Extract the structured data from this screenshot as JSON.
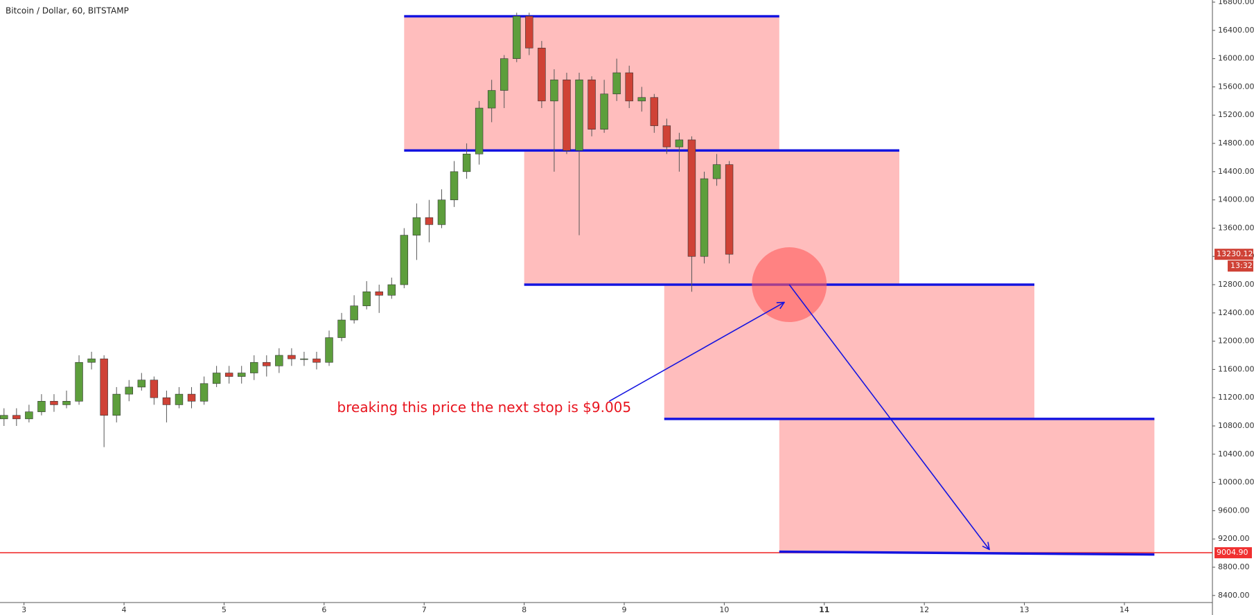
{
  "chart_data": {
    "type": "candlestick",
    "title": "Bitcoin / Dollar, 60, BITSTAMP",
    "x": [
      2.8,
      2.925,
      3.05,
      3.175,
      3.3,
      3.425,
      3.55,
      3.675,
      3.8,
      3.925,
      4.05,
      4.175,
      4.3,
      4.425,
      4.55,
      4.675,
      4.8,
      4.925,
      5.05,
      5.175,
      5.3,
      5.425,
      5.55,
      5.675,
      5.8,
      5.925,
      6.05,
      6.175,
      6.3,
      6.425,
      6.55,
      6.675,
      6.8,
      6.925,
      7.05,
      7.175,
      7.3,
      7.425,
      7.55,
      7.675,
      7.8,
      7.925,
      8.05,
      8.175,
      8.3,
      8.425,
      8.55,
      8.675,
      8.8,
      8.925,
      9.05,
      9.175,
      9.3,
      9.425,
      9.55,
      9.675,
      9.8,
      9.925,
      10.05
    ],
    "open": [
      10900,
      10950,
      10900,
      11000,
      11150,
      11100,
      11150,
      11700,
      11750,
      10950,
      11250,
      11350,
      11450,
      11200,
      11100,
      11250,
      11150,
      11400,
      11550,
      11500,
      11550,
      11700,
      11650,
      11800,
      11750,
      11750,
      11700,
      12050,
      12300,
      12500,
      12700,
      12650,
      12800,
      13500,
      13750,
      13650,
      14000,
      14400,
      14650,
      15300,
      15550,
      16000,
      16600,
      16150,
      15400,
      15700,
      14700,
      15700,
      15000,
      15500,
      15800,
      15400,
      15450,
      15050,
      14750,
      14850,
      13200,
      14300,
      14500
    ],
    "high": [
      11050,
      11050,
      11100,
      11250,
      11250,
      11300,
      11800,
      11850,
      11800,
      11350,
      11450,
      11550,
      11500,
      11300,
      11350,
      11350,
      11500,
      11650,
      11650,
      11650,
      11800,
      11800,
      11900,
      11900,
      11850,
      11850,
      12150,
      12400,
      12650,
      12850,
      12800,
      12900,
      13600,
      13950,
      14000,
      14150,
      14550,
      14800,
      15400,
      15700,
      16050,
      16650,
      16650,
      16250,
      15850,
      15800,
      15800,
      15750,
      15700,
      16000,
      15900,
      15600,
      15500,
      15150,
      14950,
      14900,
      14400,
      14650,
      14550
    ],
    "low": [
      10800,
      10800,
      10850,
      10950,
      11000,
      11050,
      11100,
      11600,
      10500,
      10850,
      11150,
      11300,
      11100,
      10850,
      11050,
      11050,
      11100,
      11350,
      11400,
      11400,
      11450,
      11500,
      11550,
      11650,
      11650,
      11600,
      11650,
      12000,
      12250,
      12450,
      12400,
      12600,
      12750,
      13150,
      13400,
      13600,
      13900,
      14300,
      14500,
      15100,
      15300,
      15950,
      16050,
      15300,
      14400,
      14650,
      13500,
      14900,
      14950,
      15400,
      15300,
      15250,
      14950,
      14650,
      14400,
      12700,
      13100,
      14200,
      13100
    ],
    "close": [
      10950,
      10900,
      11000,
      11150,
      11100,
      11150,
      11700,
      11750,
      10950,
      11250,
      11350,
      11450,
      11200,
      11100,
      11250,
      11150,
      11400,
      11550,
      11500,
      11550,
      11700,
      11650,
      11800,
      11750,
      11750,
      11700,
      12050,
      12300,
      12500,
      12700,
      12650,
      12800,
      13500,
      13750,
      13650,
      14000,
      14400,
      14650,
      15300,
      15550,
      16000,
      16600,
      16150,
      15400,
      15700,
      14700,
      15700,
      15000,
      15500,
      15800,
      15400,
      15450,
      15050,
      14750,
      14850,
      13200,
      14300,
      14500,
      13230.12
    ],
    "up_color": "#5d9e3c",
    "down_color": "#cf4236",
    "xlim": [
      2.76,
      14.88
    ],
    "xticks": [
      3,
      4,
      5,
      6,
      7,
      8,
      9,
      10,
      11,
      12,
      13,
      14
    ],
    "bold_xtick": 11,
    "ylim": [
      8300,
      16830
    ],
    "yticks": [
      {
        "value": 16800,
        "label": "16800.00"
      },
      {
        "value": 16400,
        "label": "16400.00"
      },
      {
        "value": 16000,
        "label": "16000.00"
      },
      {
        "value": 15600,
        "label": "15600.00"
      },
      {
        "value": 15200,
        "label": "15200.00"
      },
      {
        "value": 14800,
        "label": "14800.00"
      },
      {
        "value": 14400,
        "label": "14400.00"
      },
      {
        "value": 14000,
        "label": "14000.00"
      },
      {
        "value": 13600,
        "label": "13600.00"
      },
      {
        "value": 13200,
        "label": "13200.00"
      },
      {
        "value": 12800,
        "label": "12800.00"
      },
      {
        "value": 12400,
        "label": "12400.00"
      },
      {
        "value": 12000,
        "label": "12000.00"
      },
      {
        "value": 11600,
        "label": "11600.00"
      },
      {
        "value": 11200,
        "label": "11200.00"
      },
      {
        "value": 10800,
        "label": "10800.00"
      },
      {
        "value": 10400,
        "label": "10400.00"
      },
      {
        "value": 10000,
        "label": "10000.00"
      },
      {
        "value": 9600,
        "label": "9600.00"
      },
      {
        "value": 9200,
        "label": "9200.00"
      },
      {
        "value": 8800,
        "label": "8800.00"
      },
      {
        "value": 8400,
        "label": "8400.00"
      }
    ],
    "countdown": "13:32",
    "zone_color": "#ffbdbd",
    "level_color": "#1414e0",
    "zones": [
      {
        "x": [
          6.8,
          10.55
        ],
        "y": [
          14700,
          16600
        ]
      },
      {
        "x": [
          8.0,
          11.75
        ],
        "y": [
          12800,
          14700
        ]
      },
      {
        "x": [
          9.4,
          13.1
        ],
        "y": [
          10900,
          12800
        ]
      },
      {
        "x": [
          10.55,
          14.3
        ],
        "y": [
          9004.9,
          10900
        ]
      }
    ],
    "levels": [
      {
        "x": [
          6.8,
          10.55
        ],
        "y": [
          16600,
          16600
        ]
      },
      {
        "x": [
          6.8,
          11.75
        ],
        "y": [
          14700,
          14700
        ]
      },
      {
        "x": [
          8.0,
          13.1
        ],
        "y": [
          12800,
          12800
        ]
      },
      {
        "x": [
          9.4,
          14.3
        ],
        "y": [
          10900,
          10900
        ]
      },
      {
        "x": [
          10.55,
          14.3
        ],
        "y": [
          9020,
          8980
        ]
      }
    ],
    "support": {
      "value": 9004.9,
      "label": "9004.90",
      "color": "#f03030"
    },
    "highlight": {
      "x": 10.65,
      "y": 12800
    },
    "arrows": [
      {
        "x": [
          8.85,
          10.6
        ],
        "y": [
          11150,
          12550
        ]
      },
      {
        "x": [
          10.65,
          12.65
        ],
        "y": [
          12800,
          9050
        ]
      }
    ],
    "annotation": {
      "text": "breaking this price the next stop is $9.005",
      "x": 7.6,
      "y": 11050
    }
  }
}
